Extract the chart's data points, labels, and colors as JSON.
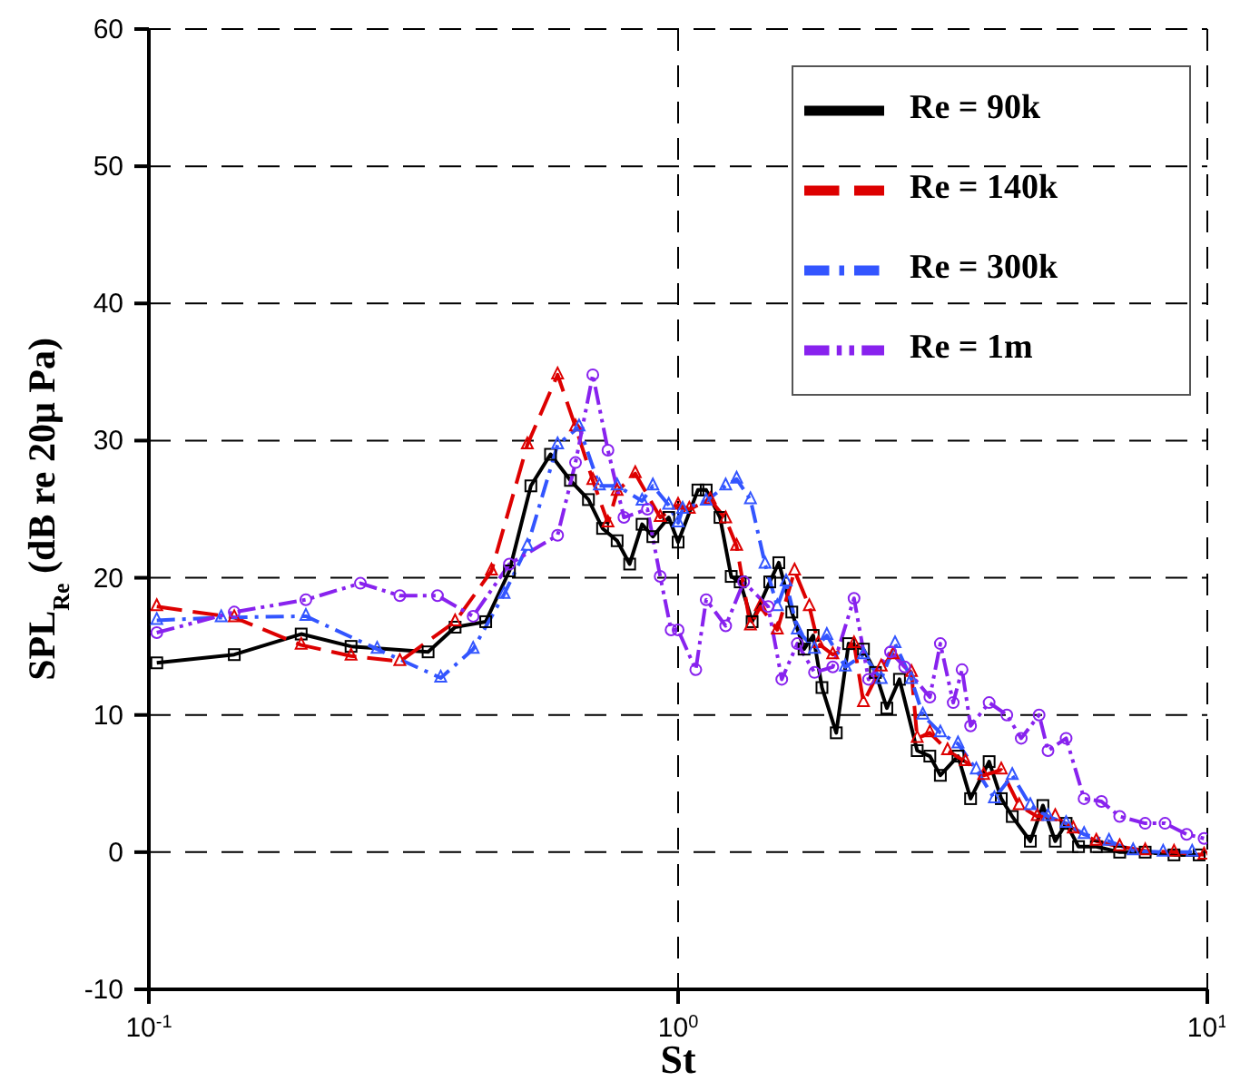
{
  "chart_data": {
    "type": "line",
    "xlabel": "St",
    "ylabel": "SPL$_{Re}$ (dB re 20μ Pa)",
    "log": "x",
    "xlim": [
      0.1,
      10
    ],
    "xticks": [
      {
        "value": 0.1,
        "label": "10$^{-1}$"
      },
      {
        "value": 1,
        "label": "10$^{0}$"
      },
      {
        "value": 10,
        "label": "10$^{1}$"
      }
    ],
    "ylim": [
      -10,
      60
    ],
    "yticks": [
      -10,
      0,
      10,
      20,
      30,
      40,
      50,
      60
    ],
    "grid": true,
    "legend": "top right",
    "series": [
      {
        "name": "Re = 90k",
        "color": "#000000",
        "marker": "square",
        "line_style": "solid",
        "x": [
          0.1035,
          0.145,
          0.194,
          0.241,
          0.337,
          0.379,
          0.433,
          0.48,
          0.527,
          0.574,
          0.626,
          0.677,
          0.72,
          0.767,
          0.81,
          0.855,
          0.896,
          0.96,
          1.0,
          1.09,
          1.13,
          1.2,
          1.26,
          1.31,
          1.38,
          1.49,
          1.55,
          1.64,
          1.73,
          1.8,
          1.87,
          1.99,
          2.1,
          2.24,
          2.36,
          2.48,
          2.62,
          2.83,
          2.99,
          3.13,
          3.38,
          3.57,
          3.87,
          4.08,
          4.28,
          4.63,
          4.89,
          5.16,
          5.41,
          5.71,
          6.17,
          6.83,
          7.63,
          8.65,
          9.65
        ],
        "values": [
          13.8,
          14.4,
          15.9,
          15.0,
          14.6,
          16.4,
          16.8,
          20.5,
          26.7,
          29.0,
          27.1,
          25.7,
          23.6,
          22.7,
          21.0,
          23.9,
          23.0,
          24.4,
          22.6,
          26.4,
          26.4,
          24.4,
          20.1,
          19.7,
          16.8,
          19.7,
          21.1,
          17.5,
          14.8,
          15.8,
          12.0,
          8.7,
          15.2,
          14.8,
          13.1,
          10.5,
          12.6,
          7.4,
          7.0,
          5.6,
          7.0,
          3.9,
          6.6,
          3.9,
          2.6,
          0.8,
          3.4,
          0.8,
          2.1,
          0.4,
          0.4,
          0,
          0,
          -0.2,
          -0.2
        ]
      },
      {
        "name": "Re = 140k",
        "color": "#dd0000",
        "marker": "triangle",
        "line_style": "dashed",
        "x": [
          0.1035,
          0.145,
          0.194,
          0.241,
          0.298,
          0.379,
          0.444,
          0.519,
          0.592,
          0.64,
          0.69,
          0.737,
          0.767,
          0.83,
          0.925,
          1.0,
          1.05,
          1.15,
          1.23,
          1.29,
          1.37,
          1.43,
          1.54,
          1.66,
          1.77,
          1.84,
          1.96,
          2.15,
          2.24,
          2.42,
          2.55,
          2.76,
          2.83,
          2.99,
          3.23,
          3.49,
          3.78,
          4.08,
          4.41,
          4.77,
          5.16,
          5.58,
          6.17,
          6.83,
          7.63,
          8.65,
          9.86
        ],
        "values": [
          17.9,
          17.1,
          15.1,
          14.3,
          13.9,
          16.8,
          20.5,
          29.7,
          34.8,
          31.0,
          27.1,
          24.0,
          26.3,
          27.6,
          24.4,
          25.3,
          25.0,
          25.7,
          24.3,
          22.3,
          16.5,
          17.9,
          16.2,
          20.5,
          17.9,
          15.2,
          14.4,
          15.2,
          10.9,
          13.5,
          14.4,
          13.1,
          8.3,
          8.7,
          7.4,
          6.6,
          5.6,
          6.0,
          3.4,
          2.6,
          2.6,
          1.7,
          0.8,
          0.4,
          0.1,
          0,
          -0.2
        ]
      },
      {
        "name": "Re = 300k",
        "color": "#3355ff",
        "marker": "triangle",
        "line_style": "dashdot",
        "x": [
          0.1035,
          0.137,
          0.198,
          0.27,
          0.356,
          0.41,
          0.469,
          0.519,
          0.592,
          0.65,
          0.71,
          0.767,
          0.855,
          0.896,
          0.96,
          1.0,
          1.02,
          1.13,
          1.23,
          1.29,
          1.37,
          1.46,
          1.54,
          1.6,
          1.68,
          1.81,
          1.91,
          2.07,
          2.24,
          2.42,
          2.57,
          2.76,
          2.9,
          3.13,
          3.38,
          3.66,
          3.96,
          4.28,
          4.63,
          5.0,
          5.41,
          5.85,
          6.52,
          7.24,
          8.25,
          9.36
        ],
        "values": [
          16.9,
          17.1,
          17.2,
          14.8,
          12.7,
          14.8,
          18.8,
          22.3,
          29.7,
          31.0,
          26.7,
          26.7,
          25.6,
          26.7,
          25.3,
          24.0,
          25.0,
          25.6,
          26.7,
          27.2,
          25.7,
          21.0,
          17.9,
          19.7,
          16.2,
          14.8,
          15.8,
          13.5,
          14.4,
          12.6,
          15.2,
          12.6,
          10.0,
          8.7,
          7.9,
          6.0,
          3.9,
          5.6,
          3.4,
          2.6,
          2.1,
          1.3,
          0.8,
          0.1,
          0,
          0
        ]
      },
      {
        "name": "Re = 1m",
        "color": "#8822ee",
        "marker": "circle",
        "line_style": "dashdotdot",
        "x": [
          0.1035,
          0.145,
          0.198,
          0.251,
          0.298,
          0.351,
          0.41,
          0.48,
          0.592,
          0.64,
          0.69,
          0.737,
          0.79,
          0.875,
          0.925,
          0.97,
          1.0,
          1.08,
          1.13,
          1.23,
          1.33,
          1.48,
          1.57,
          1.68,
          1.81,
          1.96,
          2.15,
          2.29,
          2.52,
          2.68,
          2.99,
          3.13,
          3.31,
          3.44,
          3.57,
          3.87,
          4.18,
          4.45,
          4.81,
          5.0,
          5.41,
          5.85,
          6.31,
          6.83,
          7.63,
          8.32,
          9.14,
          9.86
        ],
        "values": [
          16.0,
          17.5,
          18.4,
          19.6,
          18.7,
          18.7,
          17.2,
          21.0,
          23.1,
          28.4,
          34.8,
          29.3,
          24.4,
          25.0,
          20.1,
          16.2,
          16.2,
          13.3,
          18.4,
          16.5,
          19.7,
          17.9,
          12.6,
          15.2,
          13.1,
          13.5,
          18.5,
          12.6,
          14.6,
          13.5,
          11.3,
          15.2,
          10.9,
          13.3,
          9.2,
          10.9,
          10.0,
          8.3,
          10.0,
          7.4,
          8.3,
          3.9,
          3.7,
          2.6,
          2.1,
          2.1,
          1.3,
          1.0
        ]
      }
    ]
  }
}
